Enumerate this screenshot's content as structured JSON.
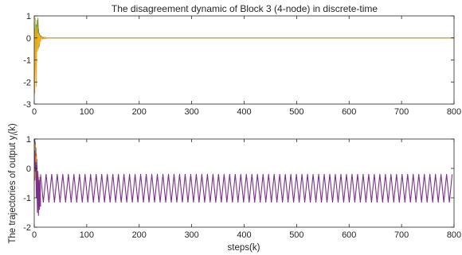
{
  "chart_data": [
    {
      "type": "line",
      "title": "The disagreement dynamic of Block 3 (4-node) in discrete-time",
      "xlabel": "",
      "ylabel": "",
      "xlim": [
        0,
        800
      ],
      "ylim": [
        -3,
        1
      ],
      "x_ticks": [
        "0",
        "100",
        "200",
        "300",
        "400",
        "500",
        "600",
        "700",
        "800"
      ],
      "y_ticks": [
        "1",
        "0",
        "-1",
        "-2",
        "-3"
      ],
      "grid": false,
      "series": [
        {
          "color": "#0072BD",
          "points": [
            [
              0,
              0.3
            ],
            [
              1,
              -0.6
            ],
            [
              2,
              0.6
            ],
            [
              3,
              -0.3
            ],
            [
              4,
              0.5
            ],
            [
              5,
              0.1
            ],
            [
              6,
              0.8
            ],
            [
              7,
              -0.1
            ],
            [
              8,
              0.4
            ],
            [
              9,
              -0.4
            ],
            [
              10,
              0.2
            ],
            [
              11,
              -0.1
            ],
            [
              12,
              0.1
            ],
            [
              14,
              0.05
            ],
            [
              16,
              -0.05
            ],
            [
              20,
              0.02
            ],
            [
              25,
              0
            ],
            [
              800,
              0
            ]
          ]
        },
        {
          "color": "#D95319",
          "points": [
            [
              0,
              -0.5
            ],
            [
              1,
              0.3
            ],
            [
              2,
              -1.2
            ],
            [
              3,
              0.4
            ],
            [
              4,
              -0.6
            ],
            [
              5,
              0.2
            ],
            [
              6,
              0.5
            ],
            [
              7,
              -0.3
            ],
            [
              8,
              0.3
            ],
            [
              9,
              -0.2
            ],
            [
              10,
              -0.3
            ],
            [
              11,
              0.1
            ],
            [
              12,
              -0.1
            ],
            [
              14,
              0.05
            ],
            [
              18,
              -0.02
            ],
            [
              25,
              0
            ],
            [
              800,
              0
            ]
          ]
        },
        {
          "color": "#77AC30",
          "points": [
            [
              0,
              0.4
            ],
            [
              1,
              -0.4
            ],
            [
              2,
              0.3
            ],
            [
              3,
              -0.7
            ],
            [
              4,
              0.6
            ],
            [
              5,
              -0.1
            ],
            [
              6,
              0.3
            ],
            [
              7,
              0.9
            ],
            [
              8,
              0.2
            ],
            [
              9,
              -0.3
            ],
            [
              10,
              0.1
            ],
            [
              12,
              -0.05
            ],
            [
              16,
              0.03
            ],
            [
              25,
              0
            ],
            [
              800,
              0
            ]
          ]
        },
        {
          "color": "#EDB120",
          "points": [
            [
              0,
              0.2
            ],
            [
              1,
              -2.5
            ],
            [
              2,
              0.9
            ],
            [
              3,
              -1.1
            ],
            [
              4,
              -2.2
            ],
            [
              5,
              0.5
            ],
            [
              6,
              -0.6
            ],
            [
              7,
              0.2
            ],
            [
              8,
              -0.5
            ],
            [
              9,
              0.2
            ],
            [
              10,
              -0.3
            ],
            [
              11,
              0.1
            ],
            [
              12,
              -0.15
            ],
            [
              14,
              0.05
            ],
            [
              16,
              -0.05
            ],
            [
              20,
              0.02
            ],
            [
              25,
              0
            ],
            [
              800,
              0
            ]
          ]
        }
      ]
    },
    {
      "type": "line",
      "title": "",
      "xlabel": "steps(k)",
      "ylabel": "The trajectories of output y_i(k)",
      "ylabel_main": "The trajectories of output y",
      "ylabel_sub": "i",
      "ylabel_tail": "(k)",
      "xlim": [
        0,
        800
      ],
      "ylim": [
        -2,
        1
      ],
      "x_ticks": [
        "0",
        "100",
        "200",
        "300",
        "400",
        "500",
        "600",
        "700",
        "800"
      ],
      "y_ticks": [
        "1",
        "0",
        "-1",
        "-2"
      ],
      "grid": false,
      "transient_series": [
        {
          "color": "#0072BD",
          "points": [
            [
              0,
              0.5
            ],
            [
              1,
              1.0
            ],
            [
              2,
              -0.2
            ],
            [
              3,
              0.7
            ],
            [
              4,
              -0.8
            ],
            [
              5,
              0.3
            ],
            [
              6,
              -1.2
            ],
            [
              7,
              -0.1
            ],
            [
              8,
              -1.3
            ]
          ]
        },
        {
          "color": "#D95319",
          "points": [
            [
              0,
              0.2
            ],
            [
              1,
              -0.4
            ],
            [
              2,
              0.9
            ],
            [
              3,
              -0.3
            ],
            [
              4,
              0.5
            ],
            [
              5,
              -0.9
            ],
            [
              6,
              -0.1
            ],
            [
              7,
              -1.1
            ],
            [
              8,
              -0.3
            ]
          ]
        },
        {
          "color": "#EDB120",
          "points": [
            [
              0,
              0.0
            ],
            [
              1,
              0.8
            ],
            [
              2,
              -0.3
            ],
            [
              3,
              0.4
            ],
            [
              4,
              -0.6
            ],
            [
              5,
              0.0
            ],
            [
              6,
              -1.0
            ],
            [
              7,
              -0.2
            ],
            [
              8,
              -1.0
            ]
          ]
        },
        {
          "color": "#7E2F8E",
          "points": [
            [
              0,
              -0.1
            ],
            [
              1,
              0.6
            ],
            [
              2,
              -0.1
            ],
            [
              3,
              0.2
            ],
            [
              4,
              -1.0
            ],
            [
              5,
              0.1
            ],
            [
              6,
              -1.5
            ],
            [
              7,
              -0.2
            ],
            [
              8,
              -1.6
            ],
            [
              9,
              -0.4
            ],
            [
              10,
              -1.4
            ],
            [
              11,
              -0.3
            ],
            [
              12,
              -1.3
            ]
          ]
        }
      ],
      "steady_oscillation": {
        "color": "#7E2F8E",
        "start_step": 12,
        "end_step": 800,
        "period_steps": 10.6,
        "max": -0.2,
        "min": -1.15
      }
    }
  ]
}
